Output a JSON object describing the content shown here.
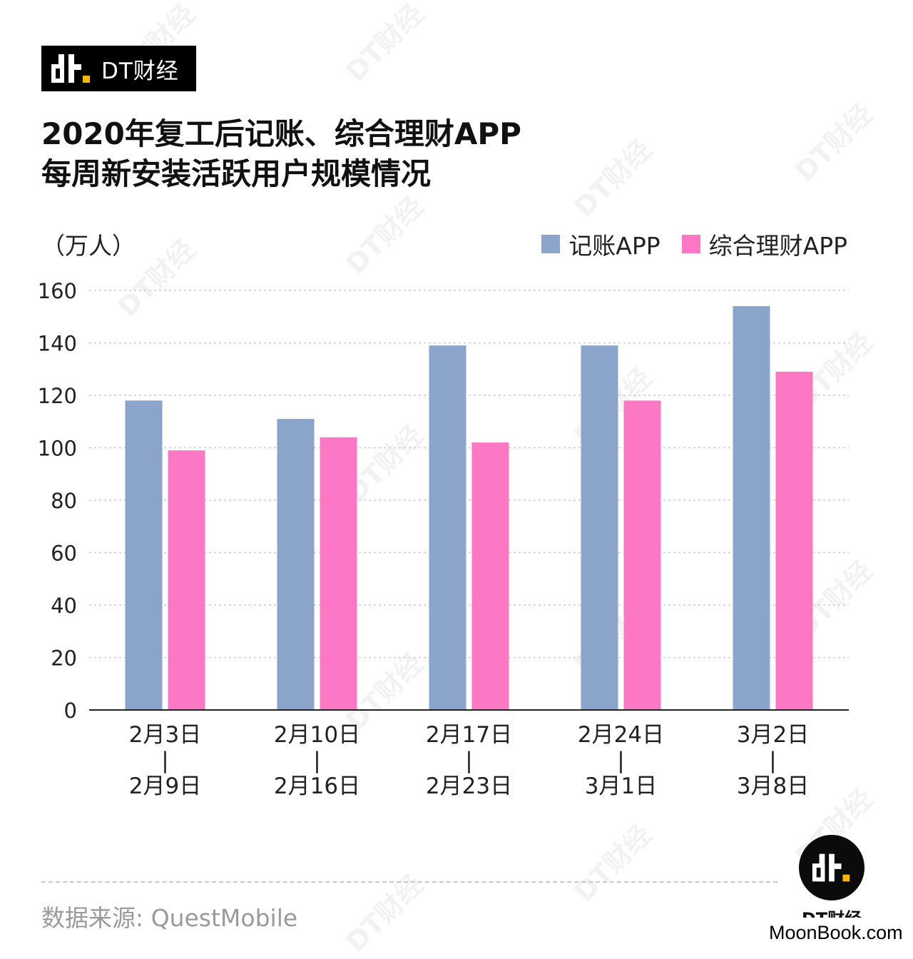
{
  "brand": {
    "name": "DT财经",
    "badge_text": "DT财经",
    "site_watermark": "MoonBook.com"
  },
  "title": {
    "line1": "2020年复工后记账、综合理财APP",
    "line2": "每周新安装活跃用户规模情况"
  },
  "source": "数据来源: QuestMobile",
  "colors": {
    "series1": "#8ba4cc",
    "series2": "#fd78c4",
    "grid": "#cccccc",
    "axis": "#222222"
  },
  "chart_data": {
    "type": "bar",
    "unit_label": "（万人）",
    "categories": [
      [
        "2月3日",
        "|",
        "2月9日"
      ],
      [
        "2月10日",
        "|",
        "2月16日"
      ],
      [
        "2月17日",
        "|",
        "2月23日"
      ],
      [
        "2月24日",
        "|",
        "3月1日"
      ],
      [
        "3月2日",
        "|",
        "3月8日"
      ]
    ],
    "series": [
      {
        "name": "记账APP",
        "values": [
          118,
          111,
          139,
          139,
          154
        ]
      },
      {
        "name": "综合理财APP",
        "values": [
          99,
          104,
          102,
          118,
          129
        ]
      }
    ],
    "ylim": [
      0,
      160
    ],
    "yticks": [
      0,
      20,
      40,
      60,
      80,
      100,
      120,
      140,
      160
    ],
    "grid": true,
    "legend_position": "top-right"
  }
}
